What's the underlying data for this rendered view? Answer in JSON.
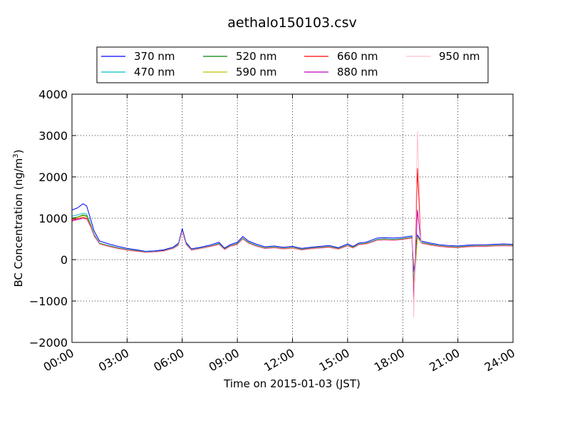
{
  "chart_data": {
    "type": "line",
    "title": "aethalo150103.csv",
    "xlabel": "Time on 2015-01-03 (JST)",
    "ylabel": "BC Concentration (ng/m³)",
    "ylabel_base": "BC Concentration (ng/m",
    "ylabel_sup": "3",
    "ylabel_end": ")",
    "xlim": [
      0,
      24
    ],
    "ylim": [
      -2000,
      4000
    ],
    "x_tick_values": [
      0,
      3,
      6,
      9,
      12,
      15,
      18,
      21,
      24
    ],
    "x_tick_labels": [
      "00:00",
      "03:00",
      "06:00",
      "09:00",
      "12:00",
      "15:00",
      "18:00",
      "21:00",
      "24:00"
    ],
    "y_tick_values": [
      4000,
      3000,
      2000,
      1000,
      0,
      -1000,
      -2000
    ],
    "y_tick_labels": [
      "4000",
      "3000",
      "2000",
      "1000",
      "0",
      "−1000",
      "−2000"
    ],
    "grid": true,
    "legend_position": "top",
    "x_unit": "hours since 00:00",
    "series": [
      {
        "name": "370 nm",
        "color": "#0000ff",
        "x": [
          0,
          0.3,
          0.6,
          0.8,
          1,
          1.2,
          1.5,
          2,
          2.5,
          3,
          3.5,
          4,
          4.5,
          5,
          5.5,
          5.8,
          6,
          6.2,
          6.5,
          7,
          7.5,
          8,
          8.3,
          8.6,
          9,
          9.3,
          9.6,
          10,
          10.5,
          11,
          11.5,
          12,
          12.5,
          13,
          13.5,
          14,
          14.5,
          15,
          15.3,
          15.6,
          16,
          16.3,
          16.6,
          17,
          17.5,
          18,
          18.3,
          18.5,
          18.6,
          18.8,
          19,
          19.5,
          20,
          20.5,
          21,
          21.5,
          22,
          22.5,
          23,
          23.5,
          24
        ],
        "values": [
          1200,
          1250,
          1350,
          1300,
          1000,
          700,
          450,
          380,
          320,
          270,
          240,
          200,
          210,
          240,
          300,
          400,
          750,
          420,
          260,
          300,
          350,
          420,
          280,
          360,
          420,
          560,
          450,
          380,
          310,
          330,
          300,
          320,
          270,
          300,
          320,
          340,
          290,
          380,
          320,
          400,
          420,
          470,
          520,
          530,
          520,
          540,
          560,
          570,
          -300,
          600,
          450,
          400,
          360,
          340,
          330,
          350,
          360,
          360,
          370,
          380,
          370
        ]
      },
      {
        "name": "470 nm",
        "color": "#00bfbf",
        "x": [
          0,
          0.3,
          0.6,
          0.8,
          1,
          1.2,
          1.5,
          2,
          2.5,
          3,
          3.5,
          4,
          4.5,
          5,
          5.5,
          5.8,
          6,
          6.2,
          6.5,
          7,
          7.5,
          8,
          8.3,
          8.6,
          9,
          9.3,
          9.6,
          10,
          10.5,
          11,
          11.5,
          12,
          12.5,
          13,
          13.5,
          14,
          14.5,
          15,
          15.3,
          15.6,
          16,
          16.3,
          16.6,
          17,
          17.5,
          18,
          18.3,
          18.5,
          18.6,
          18.8,
          19,
          19.5,
          20,
          20.5,
          21,
          21.5,
          22,
          22.5,
          23,
          23.5,
          24
        ],
        "values": [
          1050,
          1080,
          1120,
          1100,
          880,
          620,
          400,
          340,
          290,
          245,
          220,
          185,
          195,
          220,
          280,
          370,
          700,
          390,
          240,
          280,
          325,
          390,
          260,
          335,
          390,
          520,
          420,
          350,
          285,
          305,
          275,
          295,
          250,
          280,
          300,
          315,
          270,
          350,
          300,
          375,
          395,
          440,
          490,
          500,
          490,
          510,
          530,
          540,
          -500,
          560,
          420,
          375,
          335,
          315,
          305,
          325,
          335,
          335,
          345,
          355,
          345
        ]
      },
      {
        "name": "520 nm",
        "color": "#008000",
        "x": [
          0,
          0.3,
          0.6,
          0.8,
          1,
          1.2,
          1.5,
          2,
          2.5,
          3,
          3.5,
          4,
          4.5,
          5,
          5.5,
          5.8,
          6,
          6.2,
          6.5,
          7,
          7.5,
          8,
          8.3,
          8.6,
          9,
          9.3,
          9.6,
          10,
          10.5,
          11,
          11.5,
          12,
          12.5,
          13,
          13.5,
          14,
          14.5,
          15,
          15.3,
          15.6,
          16,
          16.3,
          16.6,
          17,
          17.5,
          18,
          18.3,
          18.5,
          18.6,
          18.8,
          19,
          19.5,
          20,
          20.5,
          21,
          21.5,
          22,
          22.5,
          23,
          23.5,
          24
        ],
        "values": [
          1000,
          1030,
          1080,
          1060,
          850,
          600,
          390,
          330,
          280,
          240,
          215,
          180,
          190,
          215,
          275,
          360,
          690,
          380,
          235,
          275,
          320,
          380,
          255,
          330,
          380,
          510,
          410,
          340,
          280,
          300,
          270,
          290,
          245,
          275,
          295,
          310,
          265,
          345,
          295,
          370,
          390,
          430,
          480,
          490,
          480,
          500,
          520,
          530,
          -600,
          550,
          410,
          365,
          330,
          310,
          300,
          320,
          330,
          330,
          340,
          350,
          340
        ]
      },
      {
        "name": "590 nm",
        "color": "#bfbf00",
        "x": [
          0,
          0.3,
          0.6,
          0.8,
          1,
          1.2,
          1.5,
          2,
          2.5,
          3,
          3.5,
          4,
          4.5,
          5,
          5.5,
          5.8,
          6,
          6.2,
          6.5,
          7,
          7.5,
          8,
          8.3,
          8.6,
          9,
          9.3,
          9.6,
          10,
          10.5,
          11,
          11.5,
          12,
          12.5,
          13,
          13.5,
          14,
          14.5,
          15,
          15.3,
          15.6,
          16,
          16.3,
          16.6,
          17,
          17.5,
          18,
          18.3,
          18.5,
          18.6,
          18.8,
          19,
          19.5,
          20,
          20.5,
          21,
          21.5,
          22,
          22.5,
          23,
          23.5,
          24
        ],
        "values": [
          990,
          1020,
          1060,
          1040,
          840,
          590,
          385,
          325,
          275,
          235,
          210,
          178,
          188,
          212,
          272,
          355,
          685,
          375,
          232,
          272,
          318,
          375,
          250,
          325,
          375,
          505,
          405,
          335,
          275,
          295,
          265,
          285,
          240,
          270,
          290,
          305,
          260,
          340,
          290,
          365,
          385,
          425,
          475,
          485,
          475,
          495,
          515,
          525,
          -700,
          545,
          405,
          360,
          325,
          305,
          295,
          315,
          325,
          325,
          335,
          345,
          335
        ]
      },
      {
        "name": "660 nm",
        "color": "#ff0000",
        "x": [
          0,
          0.3,
          0.6,
          0.8,
          1,
          1.2,
          1.5,
          2,
          2.5,
          3,
          3.5,
          4,
          4.5,
          5,
          5.5,
          5.8,
          6,
          6.2,
          6.5,
          7,
          7.5,
          8,
          8.3,
          8.6,
          9,
          9.3,
          9.6,
          10,
          10.5,
          11,
          11.5,
          12,
          12.5,
          13,
          13.5,
          14,
          14.5,
          15,
          15.3,
          15.6,
          16,
          16.3,
          16.6,
          17,
          17.5,
          18,
          18.3,
          18.5,
          18.6,
          18.8,
          19,
          19.5,
          20,
          20.5,
          21,
          21.5,
          22,
          22.5,
          23,
          23.5,
          24
        ],
        "values": [
          960,
          990,
          1020,
          1000,
          820,
          580,
          380,
          320,
          270,
          230,
          205,
          175,
          185,
          210,
          268,
          350,
          680,
          370,
          230,
          268,
          315,
          370,
          245,
          320,
          370,
          500,
          400,
          330,
          270,
          290,
          260,
          280,
          235,
          265,
          285,
          300,
          255,
          335,
          285,
          360,
          380,
          420,
          470,
          480,
          470,
          490,
          510,
          520,
          -1100,
          2200,
          400,
          355,
          320,
          300,
          290,
          310,
          320,
          320,
          330,
          340,
          330
        ]
      },
      {
        "name": "880 nm",
        "color": "#bf00bf",
        "x": [
          0,
          0.3,
          0.6,
          0.8,
          1,
          1.2,
          1.5,
          2,
          2.5,
          3,
          3.5,
          4,
          4.5,
          5,
          5.5,
          5.8,
          6,
          6.2,
          6.5,
          7,
          7.5,
          8,
          8.3,
          8.6,
          9,
          9.3,
          9.6,
          10,
          10.5,
          11,
          11.5,
          12,
          12.5,
          13,
          13.5,
          14,
          14.5,
          15,
          15.3,
          15.6,
          16,
          16.3,
          16.6,
          17,
          17.5,
          18,
          18.3,
          18.5,
          18.6,
          18.8,
          19,
          19.5,
          20,
          20.5,
          21,
          21.5,
          22,
          22.5,
          23,
          23.5,
          24
        ],
        "values": [
          940,
          970,
          1000,
          980,
          800,
          570,
          375,
          315,
          265,
          225,
          200,
          172,
          182,
          205,
          265,
          345,
          675,
          365,
          225,
          265,
          310,
          365,
          240,
          315,
          365,
          495,
          395,
          325,
          265,
          285,
          255,
          275,
          230,
          260,
          280,
          295,
          250,
          330,
          280,
          355,
          375,
          415,
          465,
          475,
          465,
          485,
          505,
          515,
          -900,
          1200,
          395,
          350,
          315,
          295,
          285,
          305,
          315,
          315,
          325,
          335,
          325
        ]
      },
      {
        "name": "950 nm",
        "color": "#ffc0cb",
        "x": [
          0,
          0.3,
          0.6,
          0.8,
          1,
          1.2,
          1.5,
          2,
          2.5,
          3,
          3.5,
          4,
          4.5,
          5,
          5.5,
          5.8,
          6,
          6.2,
          6.5,
          7,
          7.5,
          8,
          8.3,
          8.6,
          9,
          9.3,
          9.6,
          10,
          10.5,
          11,
          11.5,
          12,
          12.5,
          13,
          13.5,
          14,
          14.5,
          15,
          15.3,
          15.6,
          16,
          16.3,
          16.6,
          17,
          17.5,
          18,
          18.3,
          18.5,
          18.6,
          18.8,
          19,
          19.5,
          20,
          20.5,
          21,
          21.5,
          22,
          22.5,
          23,
          23.5,
          24
        ],
        "values": [
          920,
          950,
          990,
          970,
          790,
          560,
          370,
          310,
          260,
          220,
          195,
          170,
          180,
          200,
          260,
          340,
          670,
          360,
          220,
          260,
          305,
          360,
          235,
          310,
          360,
          490,
          390,
          320,
          260,
          280,
          250,
          270,
          225,
          255,
          275,
          290,
          245,
          325,
          275,
          350,
          370,
          410,
          460,
          470,
          460,
          480,
          500,
          510,
          -1400,
          3100,
          390,
          345,
          310,
          290,
          280,
          300,
          310,
          310,
          320,
          330,
          320
        ]
      }
    ]
  }
}
